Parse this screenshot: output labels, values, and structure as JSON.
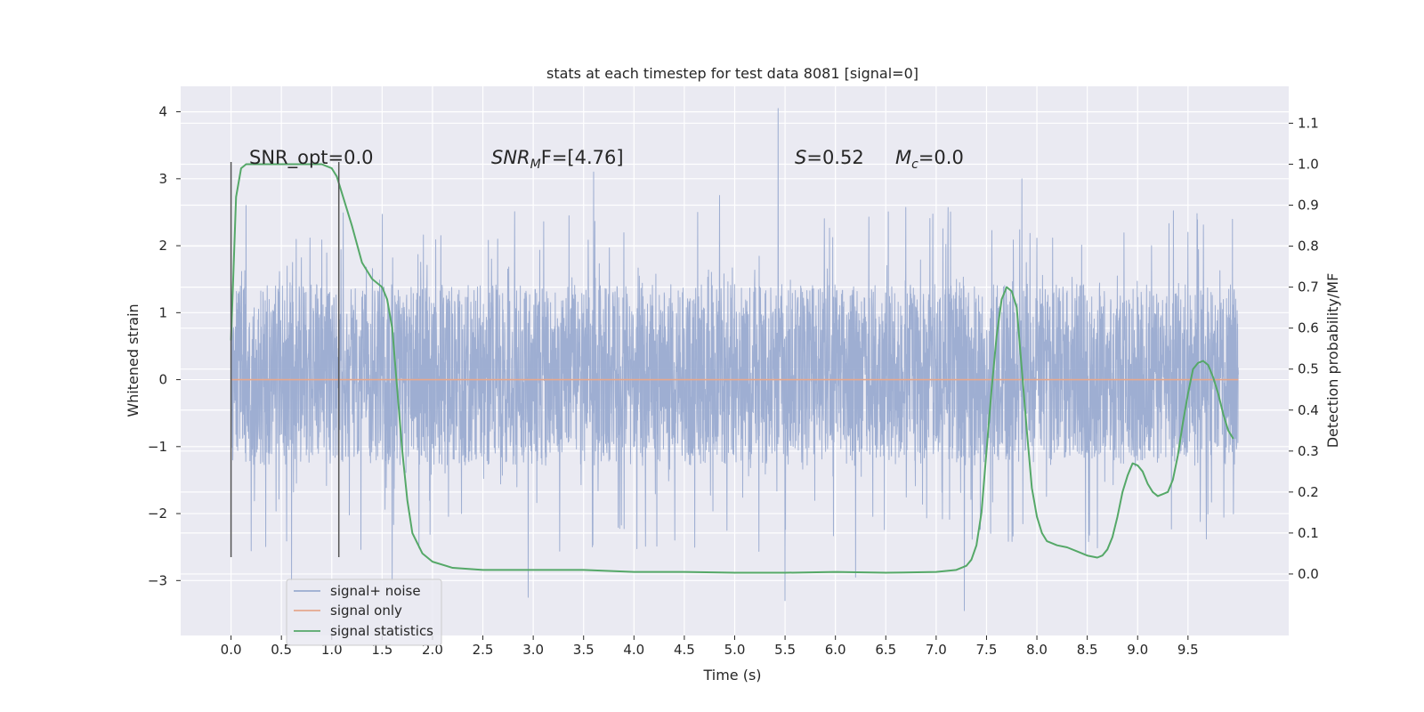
{
  "chart_data": {
    "type": "line",
    "title": "stats at each timestep for test data 8081 [signal=0]",
    "xlabel": "Time (s)",
    "ylabel": "Whitened strain",
    "y2label": "Detection probability/MF",
    "xlim": [
      -0.5,
      10.5
    ],
    "ylim": [
      -3.82,
      4.38
    ],
    "y2lim": [
      -0.15,
      1.19
    ],
    "xticks": [
      "0.0",
      "0.5",
      "1.0",
      "1.5",
      "2.0",
      "2.5",
      "3.0",
      "3.5",
      "4.0",
      "4.5",
      "5.0",
      "5.5",
      "6.0",
      "6.5",
      "7.0",
      "7.5",
      "8.0",
      "8.5",
      "9.0",
      "9.5"
    ],
    "yticks": [
      "−3",
      "−2",
      "−1",
      "0",
      "1",
      "2",
      "3",
      "4"
    ],
    "y2ticks": [
      "0.0",
      "0.1",
      "0.2",
      "0.3",
      "0.4",
      "0.5",
      "0.6",
      "0.7",
      "0.8",
      "0.9",
      "1.0",
      "1.1"
    ],
    "grid": true,
    "legend_position": "lower-left",
    "annotations": {
      "snr_opt": "SNR_opt=0.0",
      "snr_mf_base": "SNR",
      "snr_mf_sub": "M",
      "snr_mf_rest": "F=[4.76]",
      "s_base": "S",
      "s_rest": "=0.52",
      "mc_base": "M",
      "mc_sub": "c",
      "mc_rest": "=0.0"
    },
    "vertical_lines": [
      {
        "x": 0.0,
        "y_range": [
          -2.65,
          3.25
        ]
      },
      {
        "x": 1.07,
        "y_range": [
          -2.65,
          3.25
        ]
      }
    ],
    "series": [
      {
        "name": "signal+ noise",
        "color": "#9aabd0",
        "axis": "left",
        "x_range": [
          0.0,
          10.0
        ],
        "samples": 4096,
        "typical_band": [
          -1.3,
          1.45
        ],
        "peaks": [
          {
            "x": 5.43,
            "y": 4.05
          },
          {
            "x": 3.6,
            "y": 3.1
          },
          {
            "x": 7.85,
            "y": 3.0
          },
          {
            "x": 0.15,
            "y": 2.6
          },
          {
            "x": 4.85,
            "y": 2.75
          },
          {
            "x": 9.5,
            "y": 2.2
          }
        ],
        "troughs": [
          {
            "x": 5.5,
            "y": -3.3
          },
          {
            "x": 7.28,
            "y": -3.45
          },
          {
            "x": 2.95,
            "y": -3.25
          },
          {
            "x": 0.6,
            "y": -3.0
          },
          {
            "x": 1.6,
            "y": -3.0
          },
          {
            "x": 6.2,
            "y": -2.95
          }
        ]
      },
      {
        "name": "signal only",
        "color": "#e6a88d",
        "axis": "left",
        "x": [
          0.0,
          10.0
        ],
        "y": [
          0.0,
          0.0
        ]
      },
      {
        "name": "signal statistics",
        "color": "#55a868",
        "axis": "right",
        "x": [
          0.0,
          0.05,
          0.1,
          0.15,
          0.25,
          0.4,
          0.6,
          0.8,
          0.9,
          1.0,
          1.05,
          1.1,
          1.2,
          1.3,
          1.4,
          1.5,
          1.55,
          1.6,
          1.65,
          1.7,
          1.75,
          1.8,
          1.9,
          2.0,
          2.2,
          2.5,
          3.0,
          3.5,
          4.0,
          4.5,
          5.0,
          5.5,
          6.0,
          6.5,
          7.0,
          7.2,
          7.3,
          7.35,
          7.4,
          7.45,
          7.5,
          7.55,
          7.6,
          7.65,
          7.7,
          7.75,
          7.8,
          7.85,
          7.9,
          7.95,
          8.0,
          8.05,
          8.1,
          8.2,
          8.3,
          8.4,
          8.5,
          8.6,
          8.65,
          8.7,
          8.75,
          8.8,
          8.85,
          8.9,
          8.95,
          9.0,
          9.05,
          9.1,
          9.15,
          9.2,
          9.25,
          9.3,
          9.35,
          9.4,
          9.45,
          9.5,
          9.55,
          9.6,
          9.65,
          9.7,
          9.75,
          9.8,
          9.85,
          9.9,
          9.95
        ],
        "y": [
          0.57,
          0.92,
          0.99,
          1.0,
          1.0,
          1.0,
          1.0,
          1.0,
          1.0,
          0.99,
          0.97,
          0.93,
          0.85,
          0.76,
          0.72,
          0.7,
          0.67,
          0.6,
          0.45,
          0.3,
          0.18,
          0.1,
          0.05,
          0.03,
          0.015,
          0.01,
          0.01,
          0.01,
          0.005,
          0.005,
          0.003,
          0.003,
          0.005,
          0.003,
          0.005,
          0.01,
          0.02,
          0.035,
          0.07,
          0.15,
          0.3,
          0.45,
          0.58,
          0.67,
          0.7,
          0.69,
          0.65,
          0.5,
          0.35,
          0.21,
          0.14,
          0.1,
          0.08,
          0.07,
          0.065,
          0.055,
          0.045,
          0.04,
          0.045,
          0.06,
          0.09,
          0.14,
          0.2,
          0.24,
          0.27,
          0.265,
          0.25,
          0.22,
          0.2,
          0.19,
          0.195,
          0.2,
          0.23,
          0.29,
          0.37,
          0.44,
          0.5,
          0.515,
          0.52,
          0.51,
          0.48,
          0.44,
          0.39,
          0.35,
          0.33
        ]
      }
    ]
  }
}
